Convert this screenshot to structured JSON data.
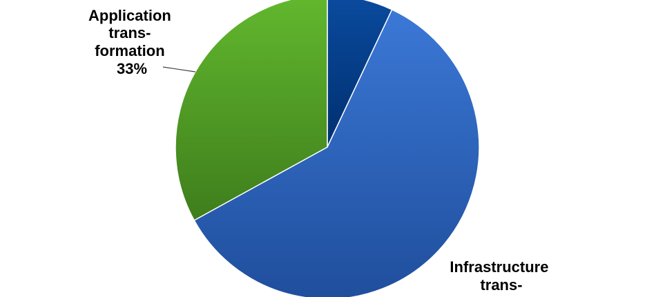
{
  "chart_data": {
    "type": "pie",
    "title": "",
    "slices": [
      {
        "name": "",
        "value": 7,
        "color": "#003B8C",
        "label_lines": []
      },
      {
        "name": "Infrastructure transformation",
        "value": 60,
        "color": "#2E5FB5",
        "label_lines": [
          "Infrastructure",
          "trans-"
        ]
      },
      {
        "name": "Application transformation",
        "value": 33,
        "color": "#4E9A24",
        "label_lines": [
          "Application",
          "trans-",
          "formation",
          "33%"
        ]
      }
    ]
  }
}
